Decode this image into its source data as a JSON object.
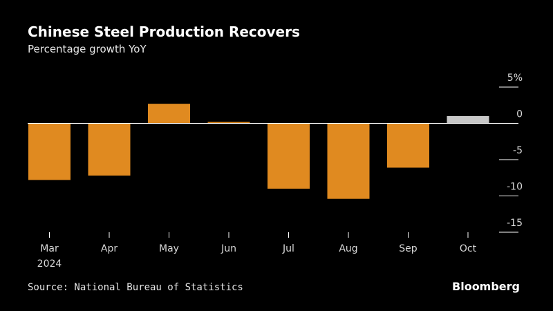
{
  "title": "Chinese Steel Production Recovers",
  "subtitle": "Percentage growth YoY",
  "source": "Source: National Bureau of Statistics",
  "brand": "Bloomberg",
  "colors": {
    "bar": "#e08a20",
    "bar_highlight": "#c8c8c8",
    "background": "#000000",
    "axis": "#ffffff"
  },
  "chart_data": {
    "type": "bar",
    "title": "Chinese Steel Production Recovers",
    "subtitle": "Percentage growth YoY",
    "categories": [
      "Mar",
      "Apr",
      "May",
      "Jun",
      "Jul",
      "Aug",
      "Sep",
      "Oct"
    ],
    "category_sublabels": [
      "2024",
      "",
      "",
      "",
      "",
      "",
      "",
      ""
    ],
    "values": [
      -7.8,
      -7.2,
      2.7,
      0.2,
      -9.0,
      -10.4,
      -6.1,
      1.0
    ],
    "highlight": [
      false,
      false,
      false,
      false,
      false,
      false,
      false,
      true
    ],
    "y_ticks": [
      5,
      0,
      -5,
      -10,
      -15
    ],
    "y_tick_labels": [
      "5%",
      "0",
      "-5",
      "-10",
      "-15"
    ],
    "ylim": [
      -15,
      5
    ],
    "xlabel": "",
    "ylabel": "",
    "axis_position": "right"
  }
}
